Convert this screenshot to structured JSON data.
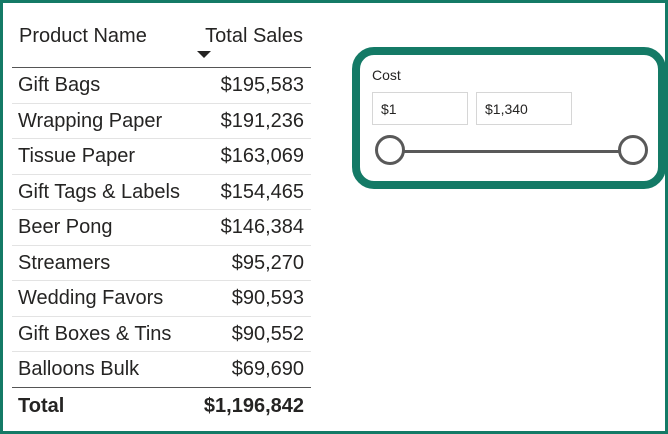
{
  "table": {
    "headers": {
      "name": "Product Name",
      "sales": "Total Sales"
    },
    "sort": {
      "column": "sales",
      "direction": "descending"
    },
    "rows": [
      {
        "name": "Gift Bags",
        "sales": "$195,583"
      },
      {
        "name": "Wrapping Paper",
        "sales": "$191,236"
      },
      {
        "name": "Tissue Paper",
        "sales": "$163,069"
      },
      {
        "name": "Gift Tags & Labels",
        "sales": "$154,465"
      },
      {
        "name": "Beer Pong",
        "sales": "$146,384"
      },
      {
        "name": "Streamers",
        "sales": "$95,270"
      },
      {
        "name": "Wedding Favors",
        "sales": "$90,593"
      },
      {
        "name": "Gift Boxes & Tins",
        "sales": "$90,552"
      },
      {
        "name": "Balloons Bulk",
        "sales": "$69,690"
      }
    ],
    "total": {
      "label": "Total",
      "value": "$1,196,842"
    }
  },
  "slicer": {
    "title": "Cost",
    "min_value": "$1",
    "max_value": "$1,340"
  },
  "colors": {
    "accent": "#147a66",
    "text": "#252423",
    "slider": "#595959"
  }
}
